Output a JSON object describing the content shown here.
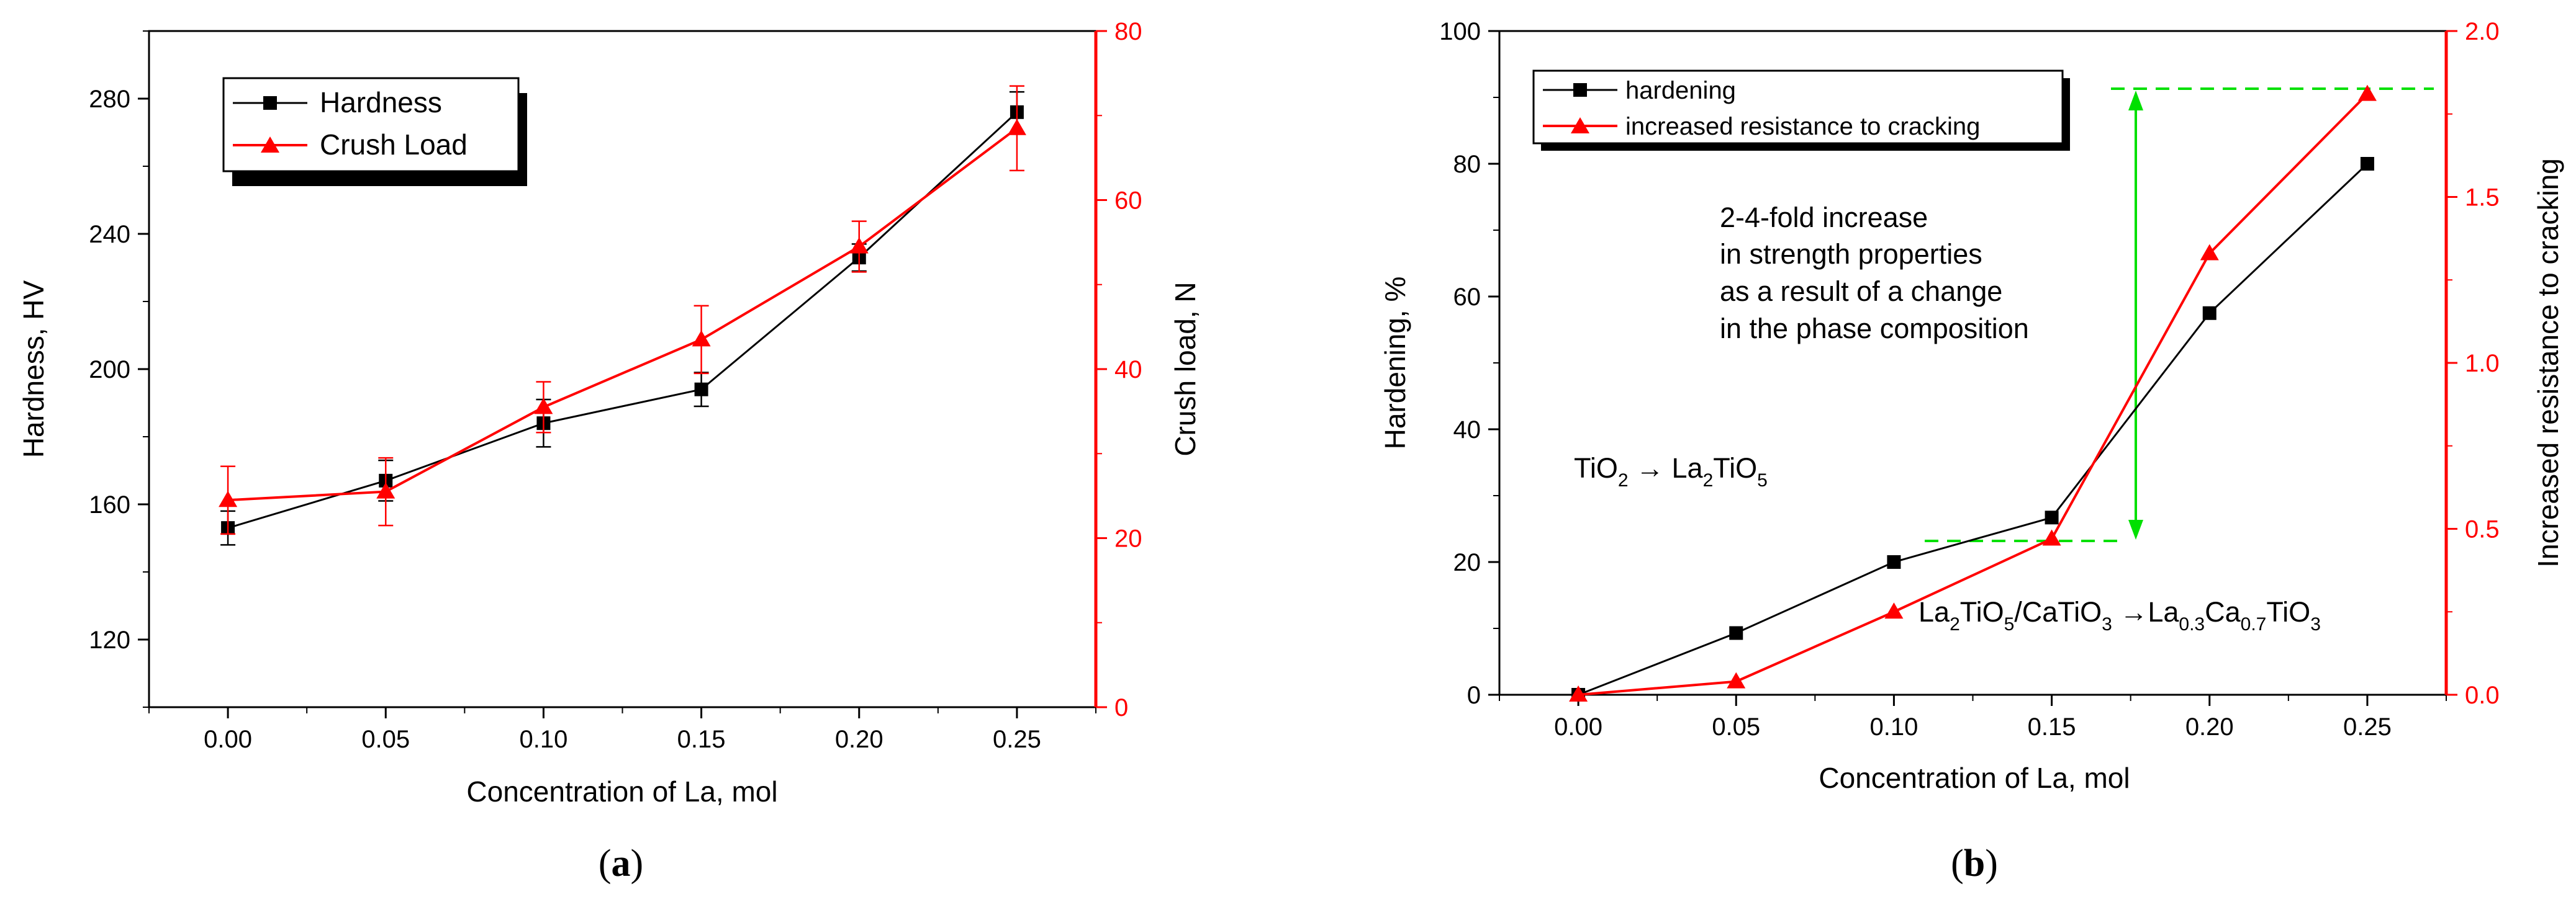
{
  "colors": {
    "primary": "#000000",
    "secondary": "#ff0000",
    "annotation": "#00e000"
  },
  "chart_data": [
    {
      "type": "line",
      "panel_label": "a",
      "xlabel": "Concentration of La, mol",
      "ylabel": "Hardness, HV",
      "y2label": "Crush load, N",
      "x": [
        0.0,
        0.05,
        0.1,
        0.15,
        0.2,
        0.25
      ],
      "x_ticks": [
        "0.00",
        "0.05",
        "0.10",
        "0.15",
        "0.20",
        "0.25"
      ],
      "xlim": [
        -0.025,
        0.275
      ],
      "ylim": [
        100,
        300
      ],
      "y_ticks": [
        "120",
        "160",
        "200",
        "240",
        "280"
      ],
      "y2lim": [
        0,
        80
      ],
      "y2_ticks": [
        "0",
        "20",
        "40",
        "60",
        "80"
      ],
      "legend": {
        "placement": "top-left",
        "entries": [
          "Hardness",
          "Crush Load"
        ]
      },
      "series": [
        {
          "name": "Hardness",
          "axis": "left",
          "marker": "square",
          "values": [
            153,
            167,
            184,
            194,
            233,
            276
          ],
          "errors": [
            5,
            6,
            7,
            5,
            4,
            6
          ]
        },
        {
          "name": "Crush Load",
          "axis": "right",
          "marker": "triangle",
          "values": [
            24.5,
            25.5,
            35.5,
            43.5,
            54.5,
            68.5
          ],
          "errors": [
            4,
            4,
            3,
            4,
            3,
            5
          ]
        }
      ]
    },
    {
      "type": "line",
      "panel_label": "b",
      "xlabel": "Concentration of La, mol",
      "ylabel": "Hardening, %",
      "y2label": "Increased resistance to cracking",
      "x": [
        0.0,
        0.05,
        0.1,
        0.15,
        0.2,
        0.25
      ],
      "x_ticks": [
        "0.00",
        "0.05",
        "0.10",
        "0.15",
        "0.20",
        "0.25"
      ],
      "xlim": [
        -0.025,
        0.275
      ],
      "ylim": [
        0,
        100
      ],
      "y_ticks": [
        "0",
        "20",
        "40",
        "60",
        "80",
        "100"
      ],
      "y2lim": [
        0,
        2.0
      ],
      "y2_ticks": [
        "0.0",
        "0.5",
        "1.0",
        "1.5",
        "2.0"
      ],
      "legend": {
        "placement": "top-left",
        "entries": [
          "hardening",
          "increased resistance to cracking"
        ]
      },
      "series": [
        {
          "name": "hardening",
          "axis": "left",
          "marker": "square",
          "values": [
            0,
            9.3,
            20,
            26.7,
            57.5,
            80
          ]
        },
        {
          "name": "increased resistance to cracking",
          "axis": "right",
          "marker": "triangle",
          "values": [
            0,
            0.04,
            0.25,
            0.47,
            1.33,
            1.81
          ]
        }
      ],
      "annotations": {
        "increase": [
          "2-4-fold increase",
          "in strength properties",
          "as a result of a change",
          "in the phase composition"
        ],
        "phase1": {
          "a": "TiO",
          "a_sub": "2",
          "arrow": " → ",
          "b": "La",
          "b_sub": "2",
          "c": "TiO",
          "c_sub": "5"
        },
        "phase2": {
          "a": "La",
          "a_sub": "2",
          "b": "TiO",
          "b_sub": "5",
          "c": "/CaTiO",
          "c_sub": "3",
          "arrow": " →",
          "d": "La",
          "d_sub": "0.3",
          "e": "Ca",
          "e_sub": "0.7",
          "f": "TiO",
          "f_sub": "3"
        }
      }
    }
  ]
}
